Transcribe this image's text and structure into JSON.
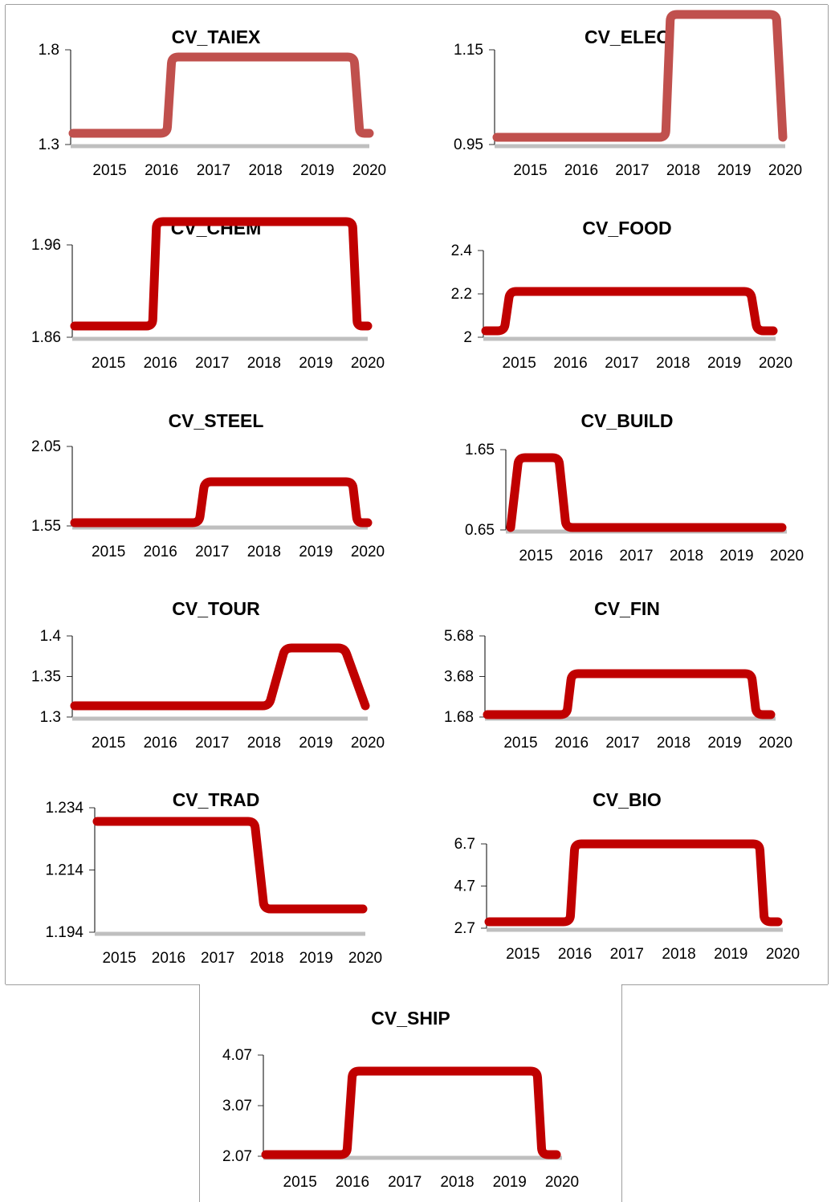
{
  "chart_data": [
    {
      "id": "taiex",
      "type": "line",
      "title": "CV_TAIEX",
      "yticks": [
        "1.8",
        "1.3"
      ],
      "ytick_values": [
        1.8,
        1.3
      ],
      "ylim": [
        1.3,
        1.8
      ],
      "xticks": [
        "2015",
        "2016",
        "2017",
        "2018",
        "2019",
        "2020"
      ],
      "xrange": [
        2014.25,
        2020.0
      ],
      "x": [
        2014.3,
        2016.1,
        2016.2,
        2019.7,
        2019.82,
        2020.0
      ],
      "y": [
        1.36,
        1.36,
        1.76,
        1.76,
        1.36,
        1.36
      ],
      "color": "#c0504d"
    },
    {
      "id": "elec",
      "type": "line",
      "title": "CV_ELEC",
      "yticks": [
        "1.15",
        "0.95"
      ],
      "ytick_values": [
        1.15,
        0.95
      ],
      "ylim": [
        0.95,
        1.15
      ],
      "xticks": [
        "2015",
        "2016",
        "2017",
        "2018",
        "2019",
        "2020"
      ],
      "xrange": [
        2014.3,
        2020.0
      ],
      "x": [
        2014.35,
        2017.65,
        2017.75,
        2019.82,
        2019.95
      ],
      "y": [
        0.965,
        0.965,
        1.225,
        1.225,
        0.965
      ],
      "color": "#c0504d"
    },
    {
      "id": "chem",
      "type": "line",
      "title": "CV_CHEM",
      "yticks": [
        "1.96",
        "1.86"
      ],
      "ytick_values": [
        1.96,
        1.86
      ],
      "ylim": [
        1.86,
        1.96
      ],
      "xticks": [
        "2015",
        "2016",
        "2017",
        "2018",
        "2019",
        "2020"
      ],
      "xrange": [
        2014.3,
        2020.0
      ],
      "x": [
        2014.35,
        2015.85,
        2015.93,
        2019.7,
        2019.8,
        2020.0
      ],
      "y": [
        1.872,
        1.872,
        1.985,
        1.985,
        1.872,
        1.872
      ],
      "color": "#c00000"
    },
    {
      "id": "food",
      "type": "line",
      "title": "CV_FOOD",
      "yticks": [
        "2.4",
        "2.2",
        "2"
      ],
      "ytick_values": [
        2.4,
        2.2,
        2.0
      ],
      "ylim": [
        2.0,
        2.4
      ],
      "xticks": [
        "2015",
        "2016",
        "2017",
        "2018",
        "2019",
        "2020"
      ],
      "xrange": [
        2014.3,
        2020.0
      ],
      "x": [
        2014.35,
        2014.7,
        2014.82,
        2019.52,
        2019.64,
        2019.95
      ],
      "y": [
        2.03,
        2.03,
        2.21,
        2.21,
        2.03,
        2.03
      ],
      "color": "#c00000"
    },
    {
      "id": "steel",
      "type": "line",
      "title": "CV_STEEL",
      "yticks": [
        "2.05",
        "1.55"
      ],
      "ytick_values": [
        2.05,
        1.55
      ],
      "ylim": [
        1.55,
        2.05
      ],
      "xticks": [
        "2015",
        "2016",
        "2017",
        "2018",
        "2019",
        "2020"
      ],
      "xrange": [
        2014.3,
        2020.0
      ],
      "x": [
        2014.35,
        2016.75,
        2016.85,
        2019.7,
        2019.8,
        2020.0
      ],
      "y": [
        1.57,
        1.57,
        1.83,
        1.83,
        1.57,
        1.57
      ],
      "color": "#c00000"
    },
    {
      "id": "build",
      "type": "line",
      "title": "CV_BUILD",
      "yticks": [
        "1.65",
        "0.65"
      ],
      "ytick_values": [
        1.65,
        0.65
      ],
      "ylim": [
        0.65,
        1.65
      ],
      "xticks": [
        "2015",
        "2016",
        "2017",
        "2018",
        "2019",
        "2020"
      ],
      "xrange": [
        2014.4,
        2020.0
      ],
      "x": [
        2014.5,
        2014.65,
        2015.45,
        2015.6,
        2019.9
      ],
      "y": [
        0.68,
        1.55,
        1.55,
        0.68,
        0.68
      ],
      "color": "#c00000"
    },
    {
      "id": "tour",
      "type": "line",
      "title": "CV_TOUR",
      "yticks": [
        "1.4",
        "1.35",
        "1.3"
      ],
      "ytick_values": [
        1.4,
        1.35,
        1.3
      ],
      "ylim": [
        1.3,
        1.4
      ],
      "xticks": [
        "2015",
        "2016",
        "2017",
        "2018",
        "2019",
        "2020"
      ],
      "xrange": [
        2014.3,
        2020.0
      ],
      "x": [
        2014.35,
        2018.1,
        2018.4,
        2019.55,
        2019.95
      ],
      "y": [
        1.314,
        1.314,
        1.385,
        1.385,
        1.314
      ],
      "color": "#c00000"
    },
    {
      "id": "fin",
      "type": "line",
      "title": "CV_FIN",
      "yticks": [
        "5.68",
        "3.68",
        "1.68"
      ],
      "ytick_values": [
        5.68,
        3.68,
        1.68
      ],
      "ylim": [
        1.68,
        5.68
      ],
      "xticks": [
        "2015",
        "2016",
        "2017",
        "2018",
        "2019",
        "2020"
      ],
      "xrange": [
        2014.3,
        2020.0
      ],
      "x": [
        2014.35,
        2015.9,
        2016.0,
        2019.52,
        2019.62,
        2019.9
      ],
      "y": [
        1.8,
        1.8,
        3.8,
        3.8,
        1.8,
        1.8
      ],
      "color": "#c00000"
    },
    {
      "id": "trad",
      "type": "line",
      "title": "CV_TRAD",
      "yticks": [
        "1.234",
        "1.214",
        "1.194"
      ],
      "ytick_values": [
        1.234,
        1.214,
        1.194
      ],
      "ylim": [
        1.194,
        1.234
      ],
      "xticks": [
        "2015",
        "2016",
        "2017",
        "2018",
        "2019",
        "2020"
      ],
      "xrange": [
        2014.5,
        2020.0
      ],
      "x": [
        2014.55,
        2017.75,
        2017.95,
        2019.95
      ],
      "y": [
        1.2295,
        1.2295,
        1.2015,
        1.2015
      ],
      "color": "#c00000"
    },
    {
      "id": "bio",
      "type": "line",
      "title": "CV_BIO",
      "yticks": [
        "6.7",
        "4.7",
        "2.7"
      ],
      "ytick_values": [
        6.7,
        4.7,
        2.7
      ],
      "ylim": [
        2.7,
        6.7
      ],
      "xticks": [
        "2015",
        "2016",
        "2017",
        "2018",
        "2019",
        "2020"
      ],
      "xrange": [
        2014.3,
        2020.0
      ],
      "x": [
        2014.35,
        2015.9,
        2016.0,
        2019.55,
        2019.65,
        2019.9
      ],
      "y": [
        3.0,
        3.0,
        6.7,
        6.7,
        3.0,
        3.0
      ],
      "color": "#c00000"
    },
    {
      "id": "ship",
      "type": "line",
      "title": "CV_SHIP",
      "yticks": [
        "4.07",
        "3.07",
        "2.07"
      ],
      "ytick_values": [
        4.07,
        3.07,
        2.07
      ],
      "ylim": [
        2.07,
        4.07
      ],
      "xticks": [
        "2015",
        "2016",
        "2017",
        "2018",
        "2019",
        "2020"
      ],
      "xrange": [
        2014.3,
        2020.0
      ],
      "x": [
        2014.35,
        2015.9,
        2016.0,
        2019.52,
        2019.62,
        2019.9
      ],
      "y": [
        2.1,
        2.1,
        3.75,
        3.75,
        2.1,
        2.1
      ],
      "color": "#c00000"
    }
  ]
}
